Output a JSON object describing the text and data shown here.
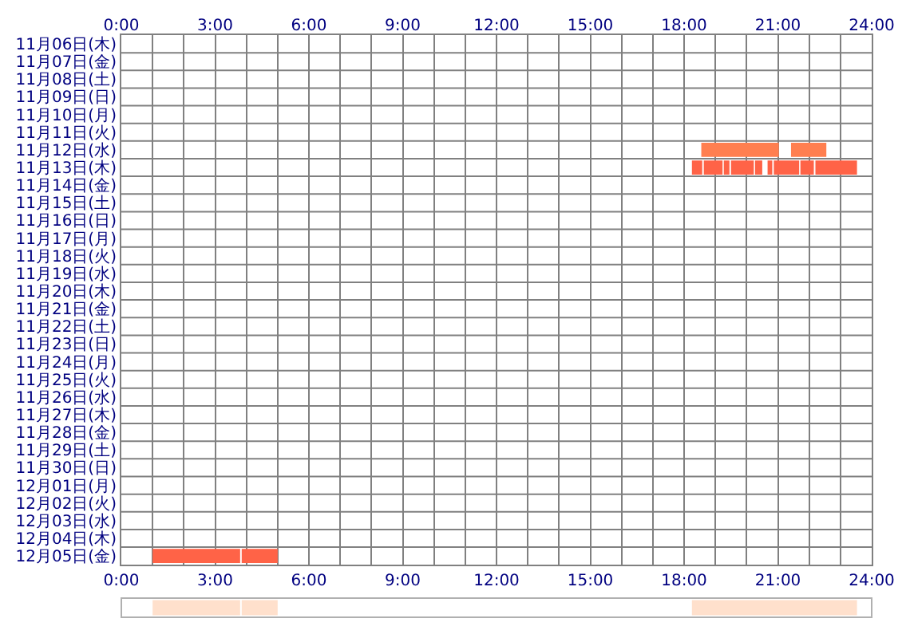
{
  "chart_data": [
    {
      "type": "bar",
      "orientation": "horizontal",
      "grid": true,
      "categories": [
        "11月06日(木)",
        "11月07日(金)",
        "11月08日(土)",
        "11月09日(日)",
        "11月10日(月)",
        "11月11日(火)",
        "11月12日(水)",
        "11月13日(木)",
        "11月14日(金)",
        "11月15日(土)",
        "11月16日(日)",
        "11月17日(月)",
        "11月18日(火)",
        "11月19日(水)",
        "11月20日(木)",
        "11月21日(金)",
        "11月22日(土)",
        "11月23日(日)",
        "11月24日(月)",
        "11月25日(火)",
        "11月26日(水)",
        "11月27日(木)",
        "11月28日(金)",
        "11月29日(土)",
        "11月30日(日)",
        "12月01日(月)",
        "12月02日(火)",
        "12月03日(水)",
        "12月04日(木)",
        "12月05日(金)"
      ],
      "xlim": [
        0,
        24
      ],
      "xticks": [
        {
          "value": 0,
          "label": "0:00"
        },
        {
          "value": 1,
          "label": null
        },
        {
          "value": 2,
          "label": null
        },
        {
          "value": 3,
          "label": "3:00"
        },
        {
          "value": 4,
          "label": null
        },
        {
          "value": 5,
          "label": null
        },
        {
          "value": 6,
          "label": "6:00"
        },
        {
          "value": 7,
          "label": null
        },
        {
          "value": 8,
          "label": null
        },
        {
          "value": 9,
          "label": "9:00"
        },
        {
          "value": 10,
          "label": null
        },
        {
          "value": 11,
          "label": null
        },
        {
          "value": 12,
          "label": "12:00"
        },
        {
          "value": 13,
          "label": null
        },
        {
          "value": 14,
          "label": null
        },
        {
          "value": 15,
          "label": "15:00"
        },
        {
          "value": 16,
          "label": null
        },
        {
          "value": 17,
          "label": null
        },
        {
          "value": 18,
          "label": "18:00"
        },
        {
          "value": 19,
          "label": null
        },
        {
          "value": 20,
          "label": null
        },
        {
          "value": 21,
          "label": "21:00"
        },
        {
          "value": 22,
          "label": null
        },
        {
          "value": 23,
          "label": null
        },
        {
          "value": 24,
          "label": "24:00"
        }
      ],
      "x2lim": [
        0,
        24
      ],
      "x2ticks": [
        {
          "value": 0,
          "label": "0:00"
        },
        {
          "value": 3,
          "label": "3:00"
        },
        {
          "value": 6,
          "label": "6:00"
        },
        {
          "value": 9,
          "label": "9:00"
        },
        {
          "value": 12,
          "label": "12:00"
        },
        {
          "value": 15,
          "label": "15:00"
        },
        {
          "value": 18,
          "label": "18:00"
        },
        {
          "value": 21,
          "label": "21:00"
        },
        {
          "value": 24,
          "label": "24:00"
        }
      ],
      "series": [
        {
          "color": "#ff6347",
          "values": [
            null,
            null,
            null,
            null,
            null,
            null,
            null,
            0.33,
            null,
            null,
            null,
            null,
            null,
            null,
            null,
            null,
            null,
            null,
            null,
            null,
            null,
            null,
            null,
            null,
            null,
            null,
            null,
            null,
            null,
            2.8
          ],
          "base": [
            null,
            null,
            null,
            null,
            null,
            null,
            null,
            18.25,
            null,
            null,
            null,
            null,
            null,
            null,
            null,
            null,
            null,
            null,
            null,
            null,
            null,
            null,
            null,
            null,
            null,
            null,
            null,
            null,
            null,
            1.0
          ]
        },
        {
          "color": "#ff6347",
          "values": [
            null,
            null,
            null,
            null,
            null,
            null,
            null,
            0.6,
            null,
            null,
            null,
            null,
            null,
            null,
            null,
            null,
            null,
            null,
            null,
            null,
            null,
            null,
            null,
            null,
            null,
            null,
            null,
            null,
            null,
            1.15
          ],
          "base": [
            null,
            null,
            null,
            null,
            null,
            null,
            null,
            18.63,
            null,
            null,
            null,
            null,
            null,
            null,
            null,
            null,
            null,
            null,
            null,
            null,
            null,
            null,
            null,
            null,
            null,
            null,
            null,
            null,
            null,
            3.85
          ]
        },
        {
          "color": "#ff6347",
          "values": [
            null,
            null,
            null,
            null,
            null,
            null,
            null,
            0.18,
            null,
            null,
            null,
            null,
            null,
            null,
            null,
            null,
            null,
            null,
            null,
            null,
            null,
            null,
            null,
            null,
            null,
            null,
            null,
            null,
            null,
            null
          ],
          "base": [
            null,
            null,
            null,
            null,
            null,
            null,
            null,
            19.27,
            null,
            null,
            null,
            null,
            null,
            null,
            null,
            null,
            null,
            null,
            null,
            null,
            null,
            null,
            null,
            null,
            null,
            null,
            null,
            null,
            null,
            null
          ]
        },
        {
          "color": "#ff6347",
          "values": [
            null,
            null,
            null,
            null,
            null,
            null,
            null,
            0.73,
            null,
            null,
            null,
            null,
            null,
            null,
            null,
            null,
            null,
            null,
            null,
            null,
            null,
            null,
            null,
            null,
            null,
            null,
            null,
            null,
            null,
            null
          ],
          "base": [
            null,
            null,
            null,
            null,
            null,
            null,
            null,
            19.5,
            null,
            null,
            null,
            null,
            null,
            null,
            null,
            null,
            null,
            null,
            null,
            null,
            null,
            null,
            null,
            null,
            null,
            null,
            null,
            null,
            null,
            null
          ]
        },
        {
          "color": "#ff6347",
          "values": [
            null,
            null,
            null,
            null,
            null,
            null,
            null,
            0.23,
            null,
            null,
            null,
            null,
            null,
            null,
            null,
            null,
            null,
            null,
            null,
            null,
            null,
            null,
            null,
            null,
            null,
            null,
            null,
            null,
            null,
            null
          ],
          "base": [
            null,
            null,
            null,
            null,
            null,
            null,
            null,
            20.27,
            null,
            null,
            null,
            null,
            null,
            null,
            null,
            null,
            null,
            null,
            null,
            null,
            null,
            null,
            null,
            null,
            null,
            null,
            null,
            null,
            null,
            null
          ]
        },
        {
          "color": "#ff6347",
          "values": [
            null,
            null,
            null,
            null,
            null,
            null,
            null,
            0.15,
            null,
            null,
            null,
            null,
            null,
            null,
            null,
            null,
            null,
            null,
            null,
            null,
            null,
            null,
            null,
            null,
            null,
            null,
            null,
            null,
            null,
            null
          ],
          "base": [
            null,
            null,
            null,
            null,
            null,
            null,
            null,
            20.67,
            null,
            null,
            null,
            null,
            null,
            null,
            null,
            null,
            null,
            null,
            null,
            null,
            null,
            null,
            null,
            null,
            null,
            null,
            null,
            null,
            null,
            null
          ]
        },
        {
          "color": "#ff6347",
          "values": [
            null,
            null,
            null,
            null,
            null,
            null,
            null,
            0.81,
            null,
            null,
            null,
            null,
            null,
            null,
            null,
            null,
            null,
            null,
            null,
            null,
            null,
            null,
            null,
            null,
            null,
            null,
            null,
            null,
            null,
            null
          ],
          "base": [
            null,
            null,
            null,
            null,
            null,
            null,
            null,
            20.87,
            null,
            null,
            null,
            null,
            null,
            null,
            null,
            null,
            null,
            null,
            null,
            null,
            null,
            null,
            null,
            null,
            null,
            null,
            null,
            null,
            null,
            null
          ]
        },
        {
          "color": "#ff6347",
          "values": [
            null,
            null,
            null,
            null,
            null,
            null,
            null,
            0.43,
            null,
            null,
            null,
            null,
            null,
            null,
            null,
            null,
            null,
            null,
            null,
            null,
            null,
            null,
            null,
            null,
            null,
            null,
            null,
            null,
            null,
            null
          ],
          "base": [
            null,
            null,
            null,
            null,
            null,
            null,
            null,
            21.72,
            null,
            null,
            null,
            null,
            null,
            null,
            null,
            null,
            null,
            null,
            null,
            null,
            null,
            null,
            null,
            null,
            null,
            null,
            null,
            null,
            null,
            null
          ]
        },
        {
          "color": "#ff6347",
          "values": [
            null,
            null,
            null,
            null,
            null,
            null,
            null,
            1.33,
            null,
            null,
            null,
            null,
            null,
            null,
            null,
            null,
            null,
            null,
            null,
            null,
            null,
            null,
            null,
            null,
            null,
            null,
            null,
            null,
            null,
            null
          ],
          "base": [
            null,
            null,
            null,
            null,
            null,
            null,
            null,
            22.2,
            null,
            null,
            null,
            null,
            null,
            null,
            null,
            null,
            null,
            null,
            null,
            null,
            null,
            null,
            null,
            null,
            null,
            null,
            null,
            null,
            null,
            null
          ]
        },
        {
          "color": "#ff7f50",
          "values": [
            null,
            null,
            null,
            null,
            null,
            null,
            2.48,
            null,
            null,
            null,
            null,
            null,
            null,
            null,
            null,
            null,
            null,
            null,
            null,
            null,
            null,
            null,
            null,
            null,
            null,
            null,
            null,
            null,
            null,
            null
          ],
          "base": [
            null,
            null,
            null,
            null,
            null,
            null,
            18.55,
            null,
            null,
            null,
            null,
            null,
            null,
            null,
            null,
            null,
            null,
            null,
            null,
            null,
            null,
            null,
            null,
            null,
            null,
            null,
            null,
            null,
            null,
            null
          ]
        },
        {
          "color": "#ff7f50",
          "values": [
            null,
            null,
            null,
            null,
            null,
            null,
            1.13,
            null,
            null,
            null,
            null,
            null,
            null,
            null,
            null,
            null,
            null,
            null,
            null,
            null,
            null,
            null,
            null,
            null,
            null,
            null,
            null,
            null,
            null,
            null
          ],
          "base": [
            null,
            null,
            null,
            null,
            null,
            null,
            21.42,
            null,
            null,
            null,
            null,
            null,
            null,
            null,
            null,
            null,
            null,
            null,
            null,
            null,
            null,
            null,
            null,
            null,
            null,
            null,
            null,
            null,
            null,
            null
          ]
        }
      ]
    },
    {
      "type": "bar",
      "orientation": "horizontal",
      "categories": [
        null
      ],
      "xlim": [
        0,
        24
      ],
      "series": [
        {
          "color": "#ffe0cc",
          "values": [
            2.8
          ],
          "base": [
            1.0
          ]
        },
        {
          "color": "#ffe0cc",
          "values": [
            1.15
          ],
          "base": [
            3.85
          ]
        },
        {
          "color": "#ffe0cc",
          "values": [
            5.28
          ],
          "base": [
            18.25
          ]
        }
      ]
    }
  ]
}
